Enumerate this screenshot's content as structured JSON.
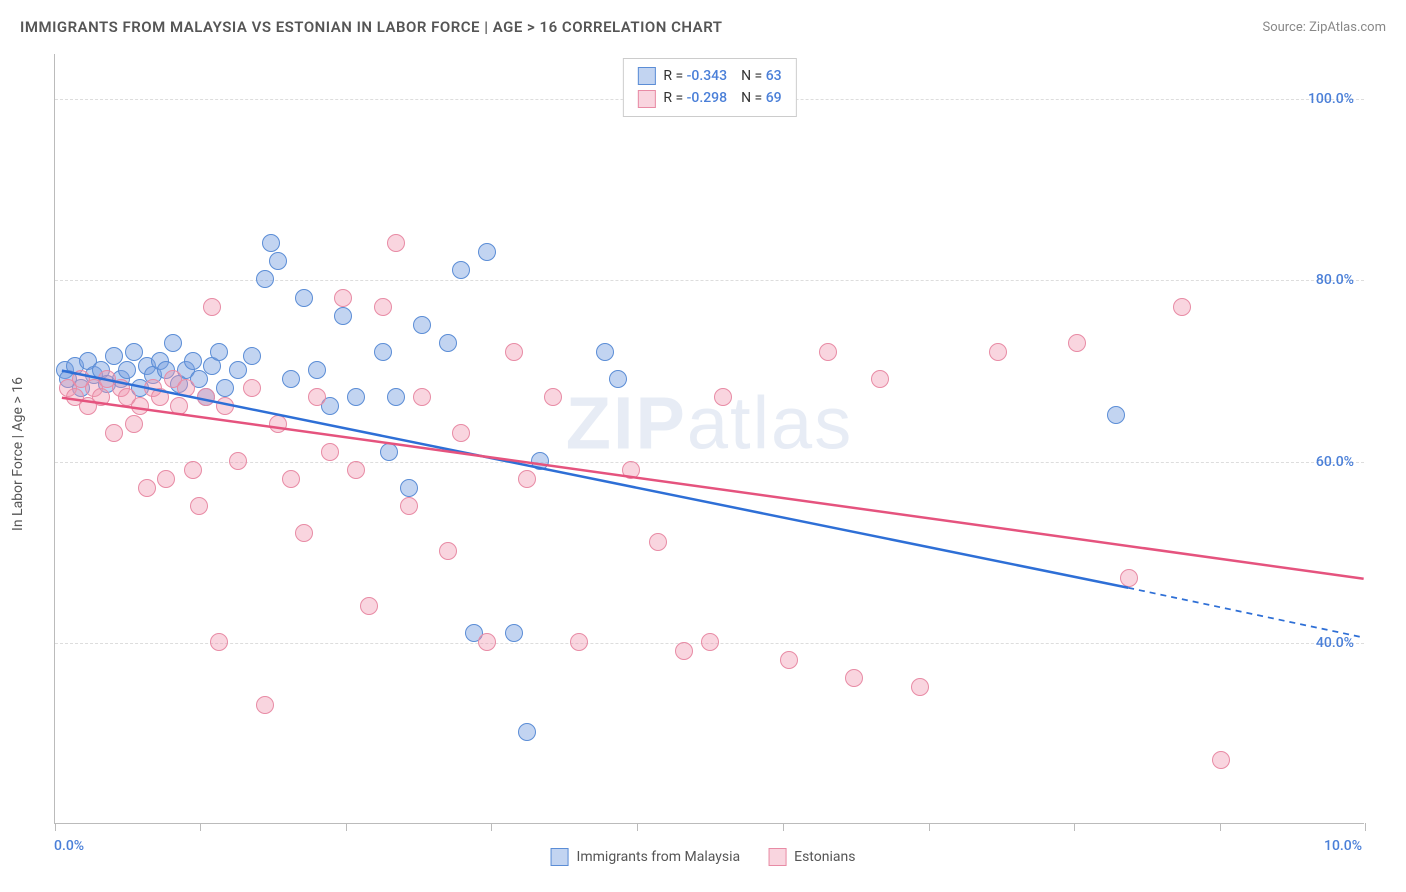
{
  "title": "IMMIGRANTS FROM MALAYSIA VS ESTONIAN IN LABOR FORCE | AGE > 16 CORRELATION CHART",
  "source": "Source: ZipAtlas.com",
  "watermark_bold": "ZIP",
  "watermark_light": "atlas",
  "y_axis_label": "In Labor Force | Age > 16",
  "chart": {
    "type": "scatter",
    "xlim": [
      0,
      10
    ],
    "ylim": [
      20,
      105
    ],
    "y_gridlines": [
      40,
      60,
      80,
      100
    ],
    "y_tick_labels": [
      "40.0%",
      "60.0%",
      "80.0%",
      "100.0%"
    ],
    "x_ticks": [
      0,
      1.11,
      2.22,
      3.33,
      4.44,
      5.56,
      6.67,
      7.78,
      8.89,
      10
    ],
    "x_tick_labels_shown": {
      "0": "0.0%",
      "10": "10.0%"
    },
    "background_color": "#ffffff",
    "grid_color": "#dddddd",
    "axis_color": "#bbbbbb",
    "marker_radius": 9,
    "series": [
      {
        "name": "Immigrants from Malaysia",
        "fill_color": "rgba(120,160,225,0.45)",
        "stroke_color": "#5b8dd6",
        "trend_color": "#2e6fd6",
        "trend_width": 2.5,
        "R": "-0.343",
        "N": "63",
        "trend": {
          "x1": 0.05,
          "y1": 70,
          "x2": 8.2,
          "y2": 46,
          "dash_x2": 10,
          "dash_y2": 40.5
        },
        "points": [
          [
            0.08,
            70
          ],
          [
            0.1,
            69
          ],
          [
            0.15,
            70.5
          ],
          [
            0.2,
            68
          ],
          [
            0.25,
            71
          ],
          [
            0.3,
            69.5
          ],
          [
            0.35,
            70
          ],
          [
            0.4,
            68.5
          ],
          [
            0.45,
            71.5
          ],
          [
            0.5,
            69
          ],
          [
            0.55,
            70
          ],
          [
            0.6,
            72
          ],
          [
            0.65,
            68
          ],
          [
            0.7,
            70.5
          ],
          [
            0.75,
            69.5
          ],
          [
            0.8,
            71
          ],
          [
            0.85,
            70
          ],
          [
            0.9,
            73
          ],
          [
            0.95,
            68.5
          ],
          [
            1.0,
            70
          ],
          [
            1.05,
            71
          ],
          [
            1.1,
            69
          ],
          [
            1.15,
            67
          ],
          [
            1.2,
            70.5
          ],
          [
            1.25,
            72
          ],
          [
            1.3,
            68
          ],
          [
            1.4,
            70
          ],
          [
            1.5,
            71.5
          ],
          [
            1.6,
            80
          ],
          [
            1.65,
            84
          ],
          [
            1.7,
            82
          ],
          [
            1.8,
            69
          ],
          [
            1.9,
            78
          ],
          [
            2.0,
            70
          ],
          [
            2.1,
            66
          ],
          [
            2.2,
            76
          ],
          [
            2.3,
            67
          ],
          [
            2.5,
            72
          ],
          [
            2.55,
            61
          ],
          [
            2.6,
            67
          ],
          [
            2.7,
            57
          ],
          [
            2.8,
            75
          ],
          [
            3.0,
            73
          ],
          [
            3.1,
            81
          ],
          [
            3.2,
            41
          ],
          [
            3.3,
            83
          ],
          [
            3.5,
            41
          ],
          [
            3.6,
            30
          ],
          [
            3.7,
            60
          ],
          [
            4.2,
            72
          ],
          [
            4.3,
            69
          ],
          [
            8.1,
            65
          ]
        ]
      },
      {
        "name": "Estonians",
        "fill_color": "rgba(240,150,175,0.4)",
        "stroke_color": "#e88ba5",
        "trend_color": "#e5537e",
        "trend_width": 2.5,
        "R": "-0.298",
        "N": "69",
        "trend": {
          "x1": 0.05,
          "y1": 67,
          "x2": 10,
          "y2": 47,
          "dash_x2": 10,
          "dash_y2": 47
        },
        "points": [
          [
            0.1,
            68
          ],
          [
            0.15,
            67
          ],
          [
            0.2,
            69
          ],
          [
            0.25,
            66
          ],
          [
            0.3,
            68
          ],
          [
            0.35,
            67
          ],
          [
            0.4,
            69
          ],
          [
            0.45,
            63
          ],
          [
            0.5,
            68
          ],
          [
            0.55,
            67
          ],
          [
            0.6,
            64
          ],
          [
            0.65,
            66
          ],
          [
            0.7,
            57
          ],
          [
            0.75,
            68
          ],
          [
            0.8,
            67
          ],
          [
            0.85,
            58
          ],
          [
            0.9,
            69
          ],
          [
            0.95,
            66
          ],
          [
            1.0,
            68
          ],
          [
            1.05,
            59
          ],
          [
            1.1,
            55
          ],
          [
            1.15,
            67
          ],
          [
            1.2,
            77
          ],
          [
            1.25,
            40
          ],
          [
            1.3,
            66
          ],
          [
            1.4,
            60
          ],
          [
            1.5,
            68
          ],
          [
            1.6,
            33
          ],
          [
            1.7,
            64
          ],
          [
            1.8,
            58
          ],
          [
            1.9,
            52
          ],
          [
            2.0,
            67
          ],
          [
            2.1,
            61
          ],
          [
            2.2,
            78
          ],
          [
            2.3,
            59
          ],
          [
            2.4,
            44
          ],
          [
            2.5,
            77
          ],
          [
            2.6,
            84
          ],
          [
            2.7,
            55
          ],
          [
            2.8,
            67
          ],
          [
            3.0,
            50
          ],
          [
            3.1,
            63
          ],
          [
            3.3,
            40
          ],
          [
            3.5,
            72
          ],
          [
            3.6,
            58
          ],
          [
            3.8,
            67
          ],
          [
            4.0,
            40
          ],
          [
            4.4,
            59
          ],
          [
            4.6,
            51
          ],
          [
            4.8,
            39
          ],
          [
            5.0,
            40
          ],
          [
            5.1,
            67
          ],
          [
            5.6,
            38
          ],
          [
            5.9,
            72
          ],
          [
            6.1,
            36
          ],
          [
            6.3,
            69
          ],
          [
            6.6,
            35
          ],
          [
            7.2,
            72
          ],
          [
            7.8,
            73
          ],
          [
            8.2,
            47
          ],
          [
            8.6,
            77
          ],
          [
            8.9,
            27
          ]
        ]
      }
    ]
  },
  "legend_bottom": [
    {
      "label": "Immigrants from Malaysia",
      "fill": "rgba(120,160,225,0.45)",
      "stroke": "#5b8dd6"
    },
    {
      "label": "Estonians",
      "fill": "rgba(240,150,175,0.4)",
      "stroke": "#e88ba5"
    }
  ]
}
